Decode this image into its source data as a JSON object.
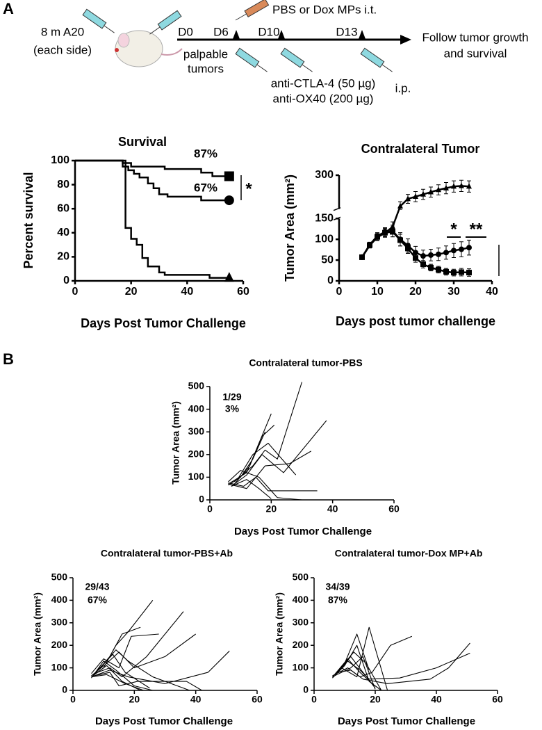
{
  "panels": [
    "A",
    "B"
  ],
  "schematic": {
    "injection": [
      "8 m A20",
      "(each side)"
    ],
    "days": [
      "D0",
      "D6",
      "D10",
      "D13"
    ],
    "treatment": "PBS or Dox MPs i.t.",
    "palpable": [
      "palpable",
      "tumors"
    ],
    "antibodies": [
      "anti-CTLA-4 (50 µg)",
      "anti-OX40 (200 µg)"
    ],
    "route": "i.p.",
    "follow": [
      "Follow tumor growth",
      "and survival"
    ]
  },
  "chart_data": [
    {
      "type": "step",
      "title": "Survival",
      "x_label": "Days Post Tumor Challenge",
      "y_label": "Percent survival",
      "xlim": [
        0,
        60
      ],
      "xticks": [
        0,
        20,
        40,
        60
      ],
      "ylim": [
        0,
        100
      ],
      "yticks": [
        0,
        20,
        40,
        60,
        80,
        100
      ],
      "annotations": [
        "87%",
        "67%",
        "*"
      ],
      "series": [
        {
          "color": "#000000",
          "marker": "square",
          "x": [
            0,
            15,
            17,
            20,
            32,
            45,
            49,
            55
          ],
          "values": [
            100,
            100,
            98,
            95,
            93,
            90,
            87,
            87
          ]
        },
        {
          "color": "#000000",
          "marker": "circle",
          "x": [
            0,
            15,
            17,
            19,
            21,
            23,
            26,
            28,
            30,
            33,
            45,
            55
          ],
          "values": [
            100,
            100,
            95,
            92,
            89,
            86,
            81,
            77,
            72,
            70,
            67,
            67
          ]
        },
        {
          "color": "#000000",
          "marker": "triangle",
          "x": [
            0,
            17,
            18,
            20,
            22,
            24,
            26,
            30,
            32,
            48,
            55
          ],
          "values": [
            100,
            100,
            44,
            35,
            30,
            19,
            12,
            7,
            5,
            2.5,
            2.5
          ]
        }
      ]
    },
    {
      "type": "line",
      "title": "Contralateral Tumor",
      "x_label": "Days post tumor challenge",
      "y_label": "Tumor Area (mm²)",
      "xlim": [
        0,
        40
      ],
      "xticks": [
        0,
        10,
        20,
        30,
        40
      ],
      "ylim": [
        0,
        300
      ],
      "yticks": [
        0,
        50,
        100,
        150,
        300
      ],
      "ybreak": [
        150,
        240
      ],
      "annotations": [
        "*",
        "**"
      ],
      "series": [
        {
          "color": "#000000",
          "marker": "triangle",
          "x": [
            6,
            8,
            10,
            12,
            14,
            16,
            18,
            20,
            22,
            24,
            26,
            28,
            30,
            32,
            34
          ],
          "values": [
            57,
            85,
            105,
            115,
            130,
            245,
            258,
            262,
            266,
            270,
            274,
            277,
            280,
            281,
            280
          ],
          "errors": [
            4,
            6,
            8,
            10,
            12,
            8,
            8,
            9,
            9,
            9,
            9,
            10,
            10,
            10,
            10
          ]
        },
        {
          "color": "#000000",
          "marker": "circle",
          "x": [
            6,
            8,
            10,
            12,
            14,
            16,
            18,
            20,
            22,
            24,
            26,
            28,
            30,
            32,
            34
          ],
          "values": [
            57,
            87,
            108,
            118,
            120,
            100,
            85,
            68,
            60,
            62,
            64,
            68,
            73,
            76,
            80
          ],
          "errors": [
            4,
            6,
            8,
            10,
            14,
            16,
            16,
            15,
            14,
            14,
            15,
            16,
            17,
            18,
            18
          ]
        },
        {
          "color": "#000000",
          "marker": "square",
          "x": [
            6,
            8,
            10,
            12,
            14,
            16,
            18,
            20,
            22,
            24,
            26,
            28,
            30,
            32,
            34
          ],
          "values": [
            57,
            86,
            106,
            116,
            118,
            98,
            78,
            55,
            40,
            32,
            27,
            22,
            20,
            21,
            20
          ],
          "errors": [
            4,
            6,
            8,
            10,
            12,
            14,
            12,
            10,
            9,
            8,
            8,
            8,
            8,
            9,
            9
          ]
        }
      ]
    },
    {
      "type": "line",
      "title": "Contralateral tumor-PBS",
      "x_label": "Days Post Tumor Challenge",
      "y_label": "Tumor Area (mm²)",
      "xlim": [
        0,
        60
      ],
      "xticks": [
        0,
        20,
        40,
        60
      ],
      "ylim": [
        0,
        500
      ],
      "yticks": [
        0,
        100,
        200,
        300,
        400,
        500
      ],
      "annotations": [
        "1/29",
        "3%"
      ],
      "series": [
        {
          "color": "#000000",
          "x": [
            6,
            10,
            14,
            18
          ],
          "values": [
            65,
            100,
            180,
            300
          ]
        },
        {
          "color": "#000000",
          "x": [
            6,
            12,
            16,
            20
          ],
          "values": [
            70,
            120,
            250,
            380
          ]
        },
        {
          "color": "#000000",
          "x": [
            8,
            14,
            18,
            22,
            30
          ],
          "values": [
            80,
            150,
            220,
            180,
            520
          ]
        },
        {
          "color": "#000000",
          "x": [
            7,
            12,
            17,
            24,
            38
          ],
          "values": [
            60,
            110,
            200,
            120,
            350
          ]
        },
        {
          "color": "#000000",
          "x": [
            6,
            11,
            15,
            19,
            35
          ],
          "values": [
            75,
            60,
            100,
            40,
            40
          ]
        },
        {
          "color": "#000000",
          "x": [
            8,
            13,
            17,
            21
          ],
          "values": [
            70,
            150,
            280,
            330
          ]
        },
        {
          "color": "#000000",
          "x": [
            7,
            12,
            16,
            20
          ],
          "values": [
            60,
            90,
            50,
            5
          ]
        },
        {
          "color": "#000000",
          "x": [
            6,
            10,
            16,
            22,
            30
          ],
          "values": [
            80,
            130,
            100,
            10,
            0
          ]
        },
        {
          "color": "#000000",
          "x": [
            9,
            14,
            19,
            28
          ],
          "values": [
            90,
            200,
            250,
            110
          ]
        },
        {
          "color": "#000000",
          "x": [
            6,
            12,
            18,
            26,
            33
          ],
          "values": [
            70,
            50,
            150,
            160,
            215
          ]
        }
      ]
    },
    {
      "type": "line",
      "title": "Contralateral tumor-PBS+Ab",
      "x_label": "Days Post Tumor Challenge",
      "y_label": "Tumor Area (mm²)",
      "xlim": [
        0,
        60
      ],
      "xticks": [
        0,
        20,
        40,
        60
      ],
      "ylim": [
        0,
        500
      ],
      "yticks": [
        0,
        100,
        200,
        300,
        400,
        500
      ],
      "annotations": [
        "29/43",
        "67%"
      ],
      "series": [
        {
          "color": "#000000",
          "x": [
            6,
            10,
            14,
            18,
            26
          ],
          "values": [
            60,
            100,
            200,
            260,
            400
          ]
        },
        {
          "color": "#000000",
          "x": [
            7,
            12,
            16,
            22
          ],
          "values": [
            70,
            150,
            250,
            280
          ]
        },
        {
          "color": "#000000",
          "x": [
            6,
            11,
            15,
            20,
            30,
            40
          ],
          "values": [
            65,
            120,
            170,
            100,
            150,
            250
          ]
        },
        {
          "color": "#000000",
          "x": [
            8,
            12,
            16,
            24,
            36
          ],
          "values": [
            80,
            100,
            60,
            150,
            350
          ]
        },
        {
          "color": "#000000",
          "x": [
            6,
            10,
            14,
            20,
            26
          ],
          "values": [
            55,
            130,
            90,
            20,
            0
          ]
        },
        {
          "color": "#000000",
          "x": [
            7,
            11,
            16,
            22
          ],
          "values": [
            70,
            110,
            40,
            0
          ]
        },
        {
          "color": "#000000",
          "x": [
            6,
            12,
            18,
            30,
            44,
            51
          ],
          "values": [
            60,
            90,
            60,
            30,
            80,
            175
          ]
        },
        {
          "color": "#000000",
          "x": [
            8,
            13,
            17,
            25
          ],
          "values": [
            90,
            160,
            80,
            10
          ]
        },
        {
          "color": "#000000",
          "x": [
            6,
            10,
            15,
            19,
            28
          ],
          "values": [
            75,
            140,
            100,
            240,
            250
          ]
        },
        {
          "color": "#000000",
          "x": [
            7,
            12,
            15,
            21,
            37,
            42
          ],
          "values": [
            65,
            80,
            20,
            40,
            40,
            0
          ]
        },
        {
          "color": "#000000",
          "x": [
            9,
            14,
            18,
            26,
            38
          ],
          "values": [
            100,
            180,
            130,
            60,
            0
          ]
        },
        {
          "color": "#000000",
          "x": [
            6,
            11,
            17,
            23
          ],
          "values": [
            60,
            70,
            30,
            0
          ]
        }
      ]
    },
    {
      "type": "line",
      "title": "Contralateral tumor-Dox MP+Ab",
      "x_label": "Days Post Tumor Challenge",
      "y_label": "Tumor Area (mm²)",
      "xlim": [
        0,
        60
      ],
      "xticks": [
        0,
        20,
        40,
        60
      ],
      "ylim": [
        0,
        500
      ],
      "yticks": [
        0,
        100,
        200,
        300,
        400,
        500
      ],
      "annotations": [
        "34/39",
        "87%"
      ],
      "series": [
        {
          "color": "#000000",
          "x": [
            6,
            10,
            14,
            18
          ],
          "values": [
            60,
            120,
            250,
            90
          ]
        },
        {
          "color": "#000000",
          "x": [
            7,
            12,
            16,
            20
          ],
          "values": [
            70,
            150,
            80,
            10
          ]
        },
        {
          "color": "#000000",
          "x": [
            6,
            11,
            15,
            19,
            25,
            32
          ],
          "values": [
            65,
            100,
            60,
            80,
            200,
            240
          ]
        },
        {
          "color": "#000000",
          "x": [
            8,
            12,
            16,
            24,
            38,
            44,
            51
          ],
          "values": [
            80,
            90,
            50,
            30,
            50,
            100,
            210
          ]
        },
        {
          "color": "#000000",
          "x": [
            6,
            10,
            14,
            18,
            22
          ],
          "values": [
            55,
            110,
            200,
            40,
            0
          ]
        },
        {
          "color": "#000000",
          "x": [
            7,
            11,
            15,
            18,
            28,
            40,
            51
          ],
          "values": [
            70,
            130,
            90,
            50,
            55,
            100,
            165
          ]
        },
        {
          "color": "#000000",
          "x": [
            8,
            13,
            17,
            22
          ],
          "values": [
            90,
            170,
            120,
            0
          ]
        },
        {
          "color": "#000000",
          "x": [
            6,
            12,
            16,
            20
          ],
          "values": [
            60,
            100,
            150,
            5
          ]
        },
        {
          "color": "#000000",
          "x": [
            9,
            14,
            18,
            24
          ],
          "values": [
            100,
            60,
            280,
            0
          ]
        },
        {
          "color": "#000000",
          "x": [
            7,
            11,
            15,
            19
          ],
          "values": [
            75,
            140,
            80,
            30
          ]
        }
      ]
    }
  ]
}
